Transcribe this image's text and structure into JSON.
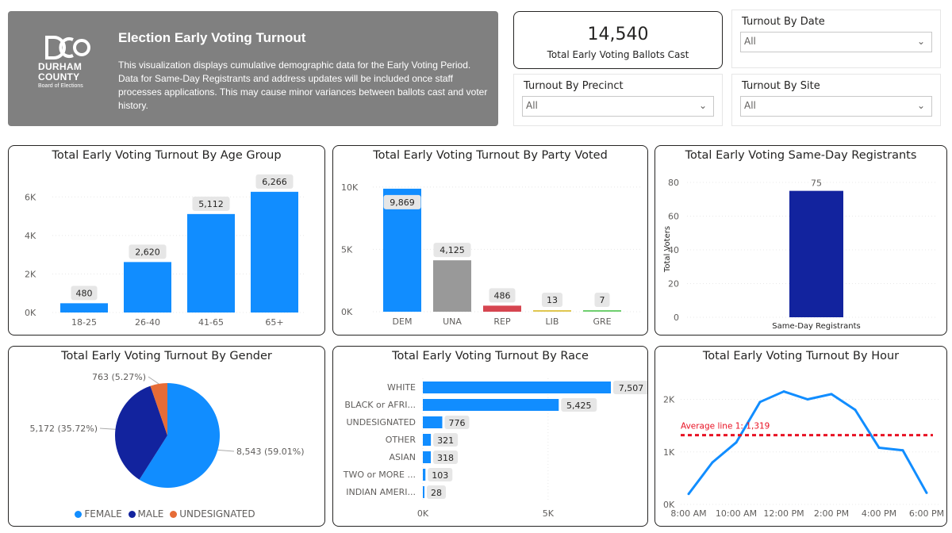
{
  "banner": {
    "title": "Election Early Voting Turnout",
    "description": "This visualization displays cumulative demographic data for the Early Voting Period. Data for Same-Day Registrants and address updates will be included once staff processes applications. This may cause minor variances between ballots cast and voter history.",
    "logo_line1": "DURHAM",
    "logo_line2": "COUNTY",
    "logo_line3": "Board of Elections"
  },
  "kpi": {
    "value": "14,540",
    "label": "Total Early Voting Ballots Cast"
  },
  "slicers": {
    "date": {
      "title": "Turnout By Date",
      "value": "All"
    },
    "precinct": {
      "title": "Turnout By Precinct",
      "value": "All"
    },
    "site": {
      "title": "Turnout By Site",
      "value": "All"
    }
  },
  "colors": {
    "blue": "#118dff",
    "navy": "#12239e",
    "orange": "#e66c37",
    "gray": "#999999",
    "red": "#d64550",
    "lib": "#e0c650",
    "gre": "#6fcf6f",
    "avg": "#e81123"
  },
  "chart_data": [
    {
      "id": "age",
      "type": "bar",
      "title": "Total Early Voting Turnout By Age Group",
      "categories": [
        "18-25",
        "26-40",
        "41-65",
        "65+"
      ],
      "values": [
        480,
        2620,
        5112,
        6266
      ],
      "value_labels": [
        "480",
        "2,620",
        "5,112",
        "6,266"
      ],
      "yticks": [
        "0K",
        "2K",
        "4K",
        "6K"
      ],
      "ylim": [
        0,
        7000
      ]
    },
    {
      "id": "party",
      "type": "bar",
      "title": "Total Early Voting Turnout By Party Voted",
      "categories": [
        "DEM",
        "UNA",
        "REP",
        "LIB",
        "GRE"
      ],
      "values": [
        9869,
        4125,
        486,
        13,
        7
      ],
      "value_labels": [
        "9,869",
        "4,125",
        "486",
        "13",
        "7"
      ],
      "yticks": [
        "0K",
        "5K",
        "10K"
      ],
      "ylim": [
        0,
        10500
      ]
    },
    {
      "id": "sameday",
      "type": "bar",
      "title": "Total Early Voting Same-Day Registrants",
      "categories": [
        "Same-Day Registrants"
      ],
      "values": [
        75
      ],
      "value_labels": [
        "75"
      ],
      "yticks": [
        "0",
        "20",
        "40",
        "60",
        "80"
      ],
      "ylabel": "Total Voters",
      "ylim": [
        0,
        80
      ]
    },
    {
      "id": "gender",
      "type": "pie",
      "title": "Total Early Voting Turnout By Gender",
      "categories": [
        "FEMALE",
        "MALE",
        "UNDESIGNATED"
      ],
      "values": [
        8543,
        5172,
        763
      ],
      "value_labels": [
        "8,543 (59.01%)",
        "5,172 (35.72%)",
        "763 (5.27%)"
      ]
    },
    {
      "id": "race",
      "type": "bar",
      "orientation": "horizontal",
      "title": "Total Early Voting Turnout By Race",
      "categories": [
        "WHITE",
        "BLACK or AFRI...",
        "UNDESIGNATED",
        "OTHER",
        "ASIAN",
        "TWO or MORE ...",
        "INDIAN AMERI..."
      ],
      "values": [
        7507,
        5425,
        776,
        321,
        318,
        103,
        28
      ],
      "value_labels": [
        "7,507",
        "5,425",
        "776",
        "321",
        "318",
        "103",
        "28"
      ],
      "xticks": [
        "0K",
        "5K"
      ],
      "xlim": [
        0,
        7800
      ]
    },
    {
      "id": "hour",
      "type": "line",
      "title": "Total Early Voting Turnout By Hour",
      "x": [
        8,
        9,
        10,
        11,
        12,
        13,
        14,
        15,
        16,
        17,
        18
      ],
      "values": [
        200,
        800,
        1180,
        1950,
        2150,
        2000,
        2100,
        1800,
        1080,
        1030,
        220
      ],
      "xticks": [
        "8:00 AM",
        "10:00 AM",
        "12:00 PM",
        "2:00 PM",
        "4:00 PM",
        "6:00 PM"
      ],
      "yticks": [
        "0K",
        "1K",
        "2K"
      ],
      "ylim": [
        0,
        2400
      ],
      "average": 1319,
      "average_label": "Average line 1: 1,319"
    }
  ]
}
